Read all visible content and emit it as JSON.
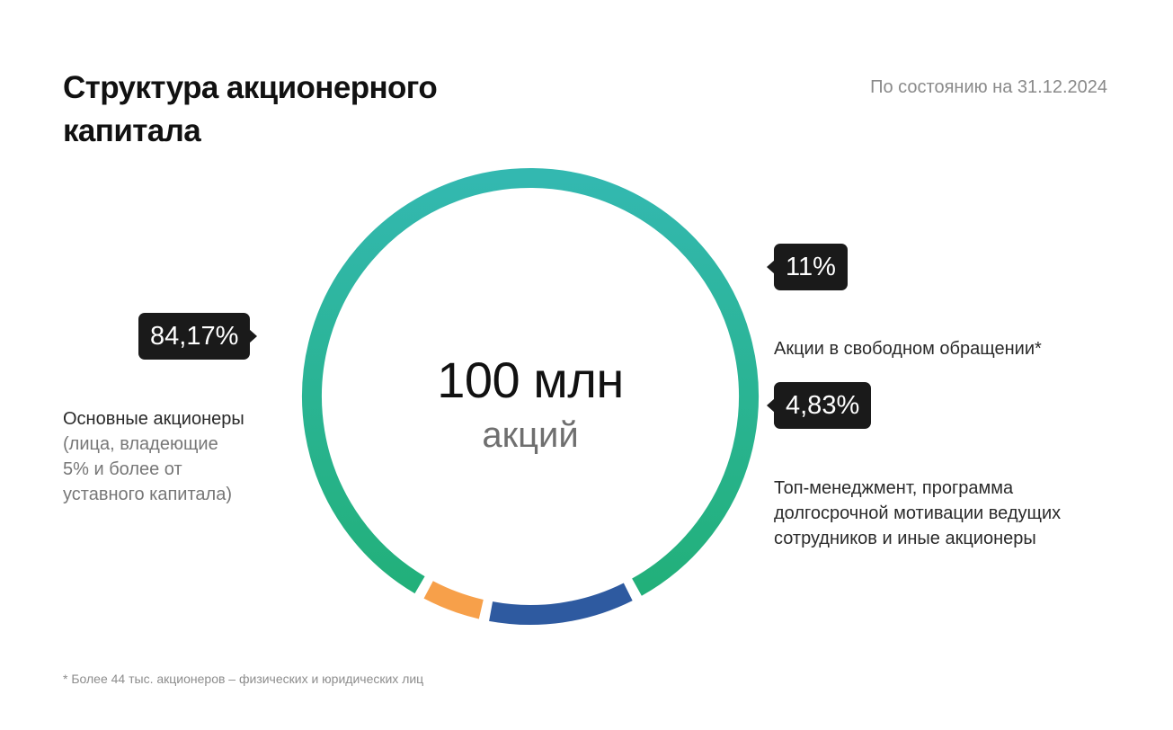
{
  "header": {
    "title": "Структура акционерного капитала",
    "as_of": "По состоянию на 31.12.2024"
  },
  "center": {
    "value": "100 млн",
    "unit": "акций"
  },
  "chart_data": {
    "type": "pie",
    "variant": "donut",
    "total_label": "100 млн акций",
    "slices": [
      {
        "name": "Основные акционеры (лица, владеющие 5% и более от уставного капитала)",
        "value": 84.17,
        "label": "84,17%",
        "color": "#2bb58a"
      },
      {
        "name": "Акции в свободном обращении*",
        "value": 11,
        "label": "11%",
        "color": "#2e5aa0"
      },
      {
        "name": "Топ-менеджмент, программа долгосрочной мотивации ведущих сотрудников и иные акционеры",
        "value": 4.83,
        "label": "4,83%",
        "color": "#f7a04a"
      }
    ],
    "gradient": {
      "top": "#33b8b0",
      "bottom": "#22b07a"
    }
  },
  "labels": {
    "major": {
      "pct": "84,17%",
      "line1": "Основные акционеры",
      "line2": "(лица, владеющие",
      "line3": "5% и более от",
      "line4": "уставного капитала)"
    },
    "free_float": {
      "pct": "11%",
      "text": "Акции в свободном обращении*"
    },
    "management": {
      "pct": "4,83%",
      "line1": "Топ-менеджмент, программа",
      "line2": "долгосрочной мотивации ведущих",
      "line3": "сотрудников и иные акционеры"
    }
  },
  "footnote": "* Более 44 тыс. акционеров – физических и юридических лиц"
}
